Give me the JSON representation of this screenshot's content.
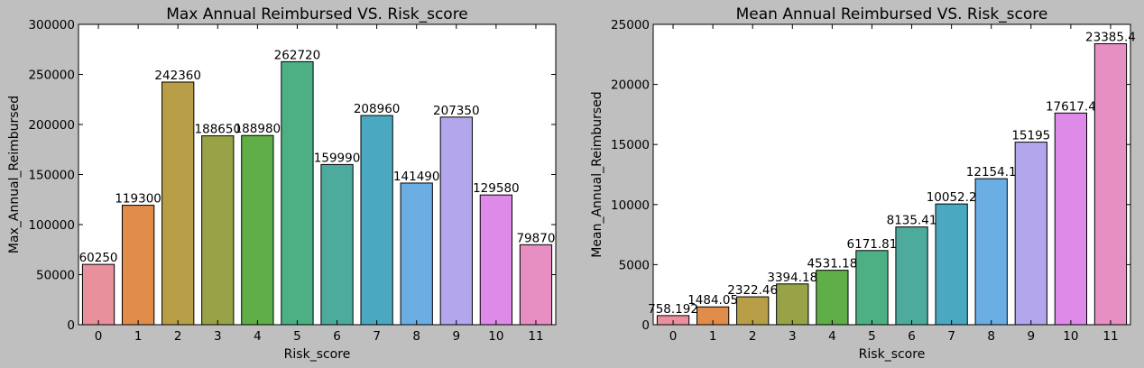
{
  "colors": {
    "figure_bg": "#bfbfbf",
    "plot_bg": "#ffffff",
    "bar_palette": [
      "#e8919c",
      "#e08c4b",
      "#b89f47",
      "#98a247",
      "#5fae48",
      "#4cb084",
      "#4cab9d",
      "#4aa9c1",
      "#6aaee3",
      "#b4a6ec",
      "#de8ae8",
      "#e78fc3"
    ]
  },
  "chart_data": [
    {
      "type": "bar",
      "title": "Max Annual Reimbursed VS. Risk_score",
      "xlabel": "Risk_score",
      "ylabel": "Max_Annual_Reimbursed",
      "categories": [
        "0",
        "1",
        "2",
        "3",
        "4",
        "5",
        "6",
        "7",
        "8",
        "9",
        "10",
        "11"
      ],
      "values": [
        60250,
        119300,
        242360,
        188650,
        188980,
        262720,
        159990,
        208960,
        141490,
        207350,
        129580,
        79870
      ],
      "value_labels": [
        "60250",
        "119300",
        "242360",
        "188650",
        "188980",
        "262720",
        "159990",
        "208960",
        "141490",
        "207350",
        "129580",
        "79870"
      ],
      "ylim": [
        0,
        300000
      ],
      "yticks": [
        0,
        50000,
        100000,
        150000,
        200000,
        250000,
        300000
      ],
      "ytick_labels": [
        "0",
        "50000",
        "100000",
        "150000",
        "200000",
        "250000",
        "300000"
      ],
      "grid": false,
      "legend": "none"
    },
    {
      "type": "bar",
      "title": "Mean Annual Reimbursed VS. Risk_score",
      "xlabel": "Risk_score",
      "ylabel": "Mean_Annual_Reimbursed",
      "categories": [
        "0",
        "1",
        "2",
        "3",
        "4",
        "5",
        "6",
        "7",
        "8",
        "9",
        "10",
        "11"
      ],
      "values": [
        758.192,
        1484.05,
        2322.46,
        3394.18,
        4531.18,
        6171.81,
        8135.41,
        10052.2,
        12154.1,
        15195,
        17617.4,
        23385.4
      ],
      "value_labels": [
        "758.192",
        "1484.05",
        "2322.46",
        "3394.18",
        "4531.18",
        "6171.81",
        "8135.41",
        "10052.2",
        "12154.1",
        "15195",
        "17617.4",
        "23385.4"
      ],
      "ylim": [
        0,
        25000
      ],
      "yticks": [
        0,
        5000,
        10000,
        15000,
        20000,
        25000
      ],
      "ytick_labels": [
        "0",
        "5000",
        "10000",
        "15000",
        "20000",
        "25000"
      ],
      "grid": false,
      "legend": "none"
    }
  ]
}
